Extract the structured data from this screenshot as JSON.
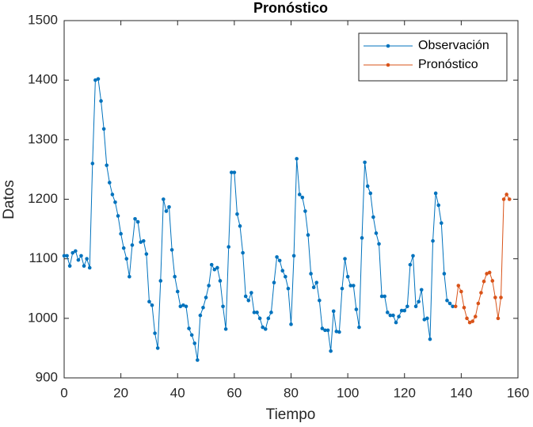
{
  "chart_data": {
    "type": "line",
    "title": "Pronóstico",
    "xlabel": "Tiempo",
    "ylabel": "Datos",
    "xlim": [
      0,
      160
    ],
    "xticks": [
      0,
      20,
      40,
      60,
      80,
      100,
      120,
      140,
      160
    ],
    "ylim": [
      900,
      1500
    ],
    "yticks": [
      900,
      1000,
      1100,
      1200,
      1300,
      1400,
      1500
    ],
    "legend": "northeast",
    "grid": false,
    "series": [
      {
        "name": "Observación",
        "color": "#0072BD",
        "x": [
          0,
          1,
          2,
          3,
          4,
          5,
          6,
          7,
          8,
          9,
          10,
          11,
          12,
          13,
          14,
          15,
          16,
          17,
          18,
          19,
          20,
          21,
          22,
          23,
          24,
          25,
          26,
          27,
          28,
          29,
          30,
          31,
          32,
          33,
          34,
          35,
          36,
          37,
          38,
          39,
          40,
          41,
          42,
          43,
          44,
          45,
          46,
          47,
          48,
          49,
          50,
          51,
          52,
          53,
          54,
          55,
          56,
          57,
          58,
          59,
          60,
          61,
          62,
          63,
          64,
          65,
          66,
          67,
          68,
          69,
          70,
          71,
          72,
          73,
          74,
          75,
          76,
          77,
          78,
          79,
          80,
          81,
          82,
          83,
          84,
          85,
          86,
          87,
          88,
          89,
          90,
          91,
          92,
          93,
          94,
          95,
          96,
          97,
          98,
          99,
          100,
          101,
          102,
          103,
          104,
          105,
          106,
          107,
          108,
          109,
          110,
          111,
          112,
          113,
          114,
          115,
          116,
          117,
          118,
          119,
          120,
          121,
          122,
          123,
          124,
          125,
          126,
          127,
          128,
          129,
          130,
          131,
          132,
          133,
          134,
          135,
          136,
          137
        ],
        "values": [
          1105,
          1105,
          1088,
          1110,
          1113,
          1098,
          1105,
          1088,
          1100,
          1085,
          1260,
          1400,
          1402,
          1365,
          1318,
          1257,
          1228,
          1208,
          1195,
          1172,
          1142,
          1118,
          1100,
          1070,
          1123,
          1167,
          1162,
          1128,
          1130,
          1108,
          1028,
          1022,
          975,
          950,
          1063,
          1200,
          1180,
          1187,
          1115,
          1070,
          1045,
          1020,
          1022,
          1020,
          983,
          972,
          958,
          930,
          1005,
          1018,
          1035,
          1055,
          1090,
          1082,
          1085,
          1063,
          1020,
          982,
          1120,
          1245,
          1245,
          1175,
          1155,
          1110,
          1037,
          1030,
          1043,
          1010,
          1010,
          1000,
          985,
          982,
          1000,
          1010,
          1060,
          1103,
          1097,
          1080,
          1070,
          1050,
          990,
          1105,
          1268,
          1208,
          1203,
          1180,
          1140,
          1075,
          1052,
          1060,
          1030,
          983,
          980,
          980,
          945,
          1012,
          978,
          977,
          1050,
          1100,
          1070,
          1055,
          1055,
          1015,
          985,
          1135,
          1262,
          1222,
          1210,
          1170,
          1143,
          1125,
          1037,
          1037,
          1010,
          1005,
          1005,
          993,
          1003,
          1013,
          1013,
          1020,
          1090,
          1105,
          1020,
          1028,
          1048,
          998,
          1000,
          965,
          1130,
          1210,
          1190,
          1160,
          1075,
          1030,
          1025,
          1020
        ]
      },
      {
        "name": "Pronóstico",
        "color": "#D95319",
        "x": [
          138,
          139,
          140,
          141,
          142,
          143,
          144,
          145,
          146,
          147,
          148,
          149,
          150,
          151,
          152,
          153,
          154,
          155,
          156,
          157
        ],
        "values": [
          1020,
          1055,
          1045,
          1018,
          1000,
          993,
          995,
          1003,
          1025,
          1043,
          1062,
          1075,
          1077,
          1063,
          1035,
          1000,
          1035,
          1200,
          1208,
          1200
        ]
      }
    ]
  }
}
